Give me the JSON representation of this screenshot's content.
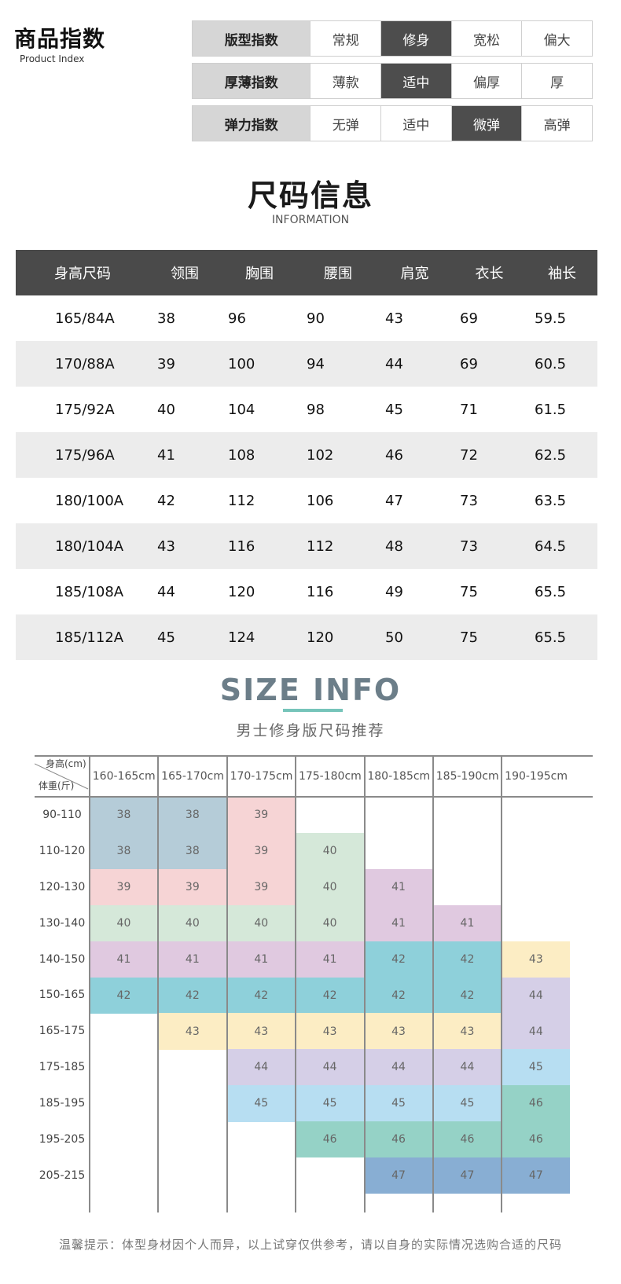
{
  "product_index": {
    "title": "商品指数",
    "subtitle": "Product Index",
    "rows": [
      {
        "label": "版型指数",
        "options": [
          "常规",
          "修身",
          "宽松",
          "偏大"
        ],
        "selected": 1
      },
      {
        "label": "厚薄指数",
        "options": [
          "薄款",
          "适中",
          "偏厚",
          "厚"
        ],
        "selected": 1
      },
      {
        "label": "弹力指数",
        "options": [
          "无弹",
          "适中",
          "微弹",
          "高弹"
        ],
        "selected": 2
      }
    ]
  },
  "size_info": {
    "title": "尺码信息",
    "subtitle": "INFORMATION",
    "headers": [
      "身高尺码",
      "领围",
      "胸围",
      "腰围",
      "肩宽",
      "衣长",
      "袖长"
    ],
    "rows": [
      [
        "165/84A",
        "38",
        "96",
        "90",
        "43",
        "69",
        "59.5"
      ],
      [
        "170/88A",
        "39",
        "100",
        "94",
        "44",
        "69",
        "60.5"
      ],
      [
        "175/92A",
        "40",
        "104",
        "98",
        "45",
        "71",
        "61.5"
      ],
      [
        "175/96A",
        "41",
        "108",
        "102",
        "46",
        "72",
        "62.5"
      ],
      [
        "180/100A",
        "42",
        "112",
        "106",
        "47",
        "73",
        "63.5"
      ],
      [
        "180/104A",
        "43",
        "116",
        "112",
        "48",
        "73",
        "64.5"
      ],
      [
        "185/108A",
        "44",
        "120",
        "116",
        "49",
        "75",
        "65.5"
      ],
      [
        "185/112A",
        "45",
        "124",
        "120",
        "50",
        "75",
        "65.5"
      ]
    ]
  },
  "recommend": {
    "title": "SIZE INFO",
    "subtitle": "男士修身版尺码推荐",
    "corner_height": "身高(cm)",
    "corner_weight": "体重(斤)",
    "heights": [
      "160-165cm",
      "165-170cm",
      "170-175cm",
      "175-180cm",
      "180-185cm",
      "185-190cm",
      "190-195cm"
    ],
    "weights": [
      "90-110",
      "110-120",
      "120-130",
      "130-140",
      "140-150",
      "150-165",
      "165-175",
      "175-185",
      "185-195",
      "195-205",
      "205-215"
    ],
    "grid": [
      [
        "38",
        "38",
        "39",
        "",
        "",
        "",
        ""
      ],
      [
        "38",
        "38",
        "39",
        "40",
        "",
        "",
        ""
      ],
      [
        "39",
        "39",
        "39",
        "40",
        "41",
        "",
        ""
      ],
      [
        "40",
        "40",
        "40",
        "40",
        "41",
        "41",
        ""
      ],
      [
        "41",
        "41",
        "41",
        "41",
        "42",
        "42",
        "43"
      ],
      [
        "42",
        "42",
        "42",
        "42",
        "42",
        "42",
        "44"
      ],
      [
        "",
        "43",
        "43",
        "43",
        "43",
        "43",
        "44"
      ],
      [
        "",
        "",
        "44",
        "44",
        "44",
        "44",
        "45"
      ],
      [
        "",
        "",
        "45",
        "45",
        "45",
        "45",
        "46"
      ],
      [
        "",
        "",
        "",
        "46",
        "46",
        "46",
        "46"
      ],
      [
        "",
        "",
        "",
        "",
        "47",
        "47",
        "47"
      ]
    ],
    "size_colors": {
      "38": "#b5ccd8",
      "39": "#f6d4d5",
      "40": "#d5e8d9",
      "41": "#e0c9e0",
      "42": "#8ed0da",
      "43": "#fcedc4",
      "44": "#d5cfe7",
      "45": "#b7def2",
      "46": "#95d2c6",
      "47": "#88aed3"
    },
    "tip": "温馨提示：体型身材因个人而异，以上试穿仅供参考，请以自身的实际情况选购合适的尺码"
  }
}
